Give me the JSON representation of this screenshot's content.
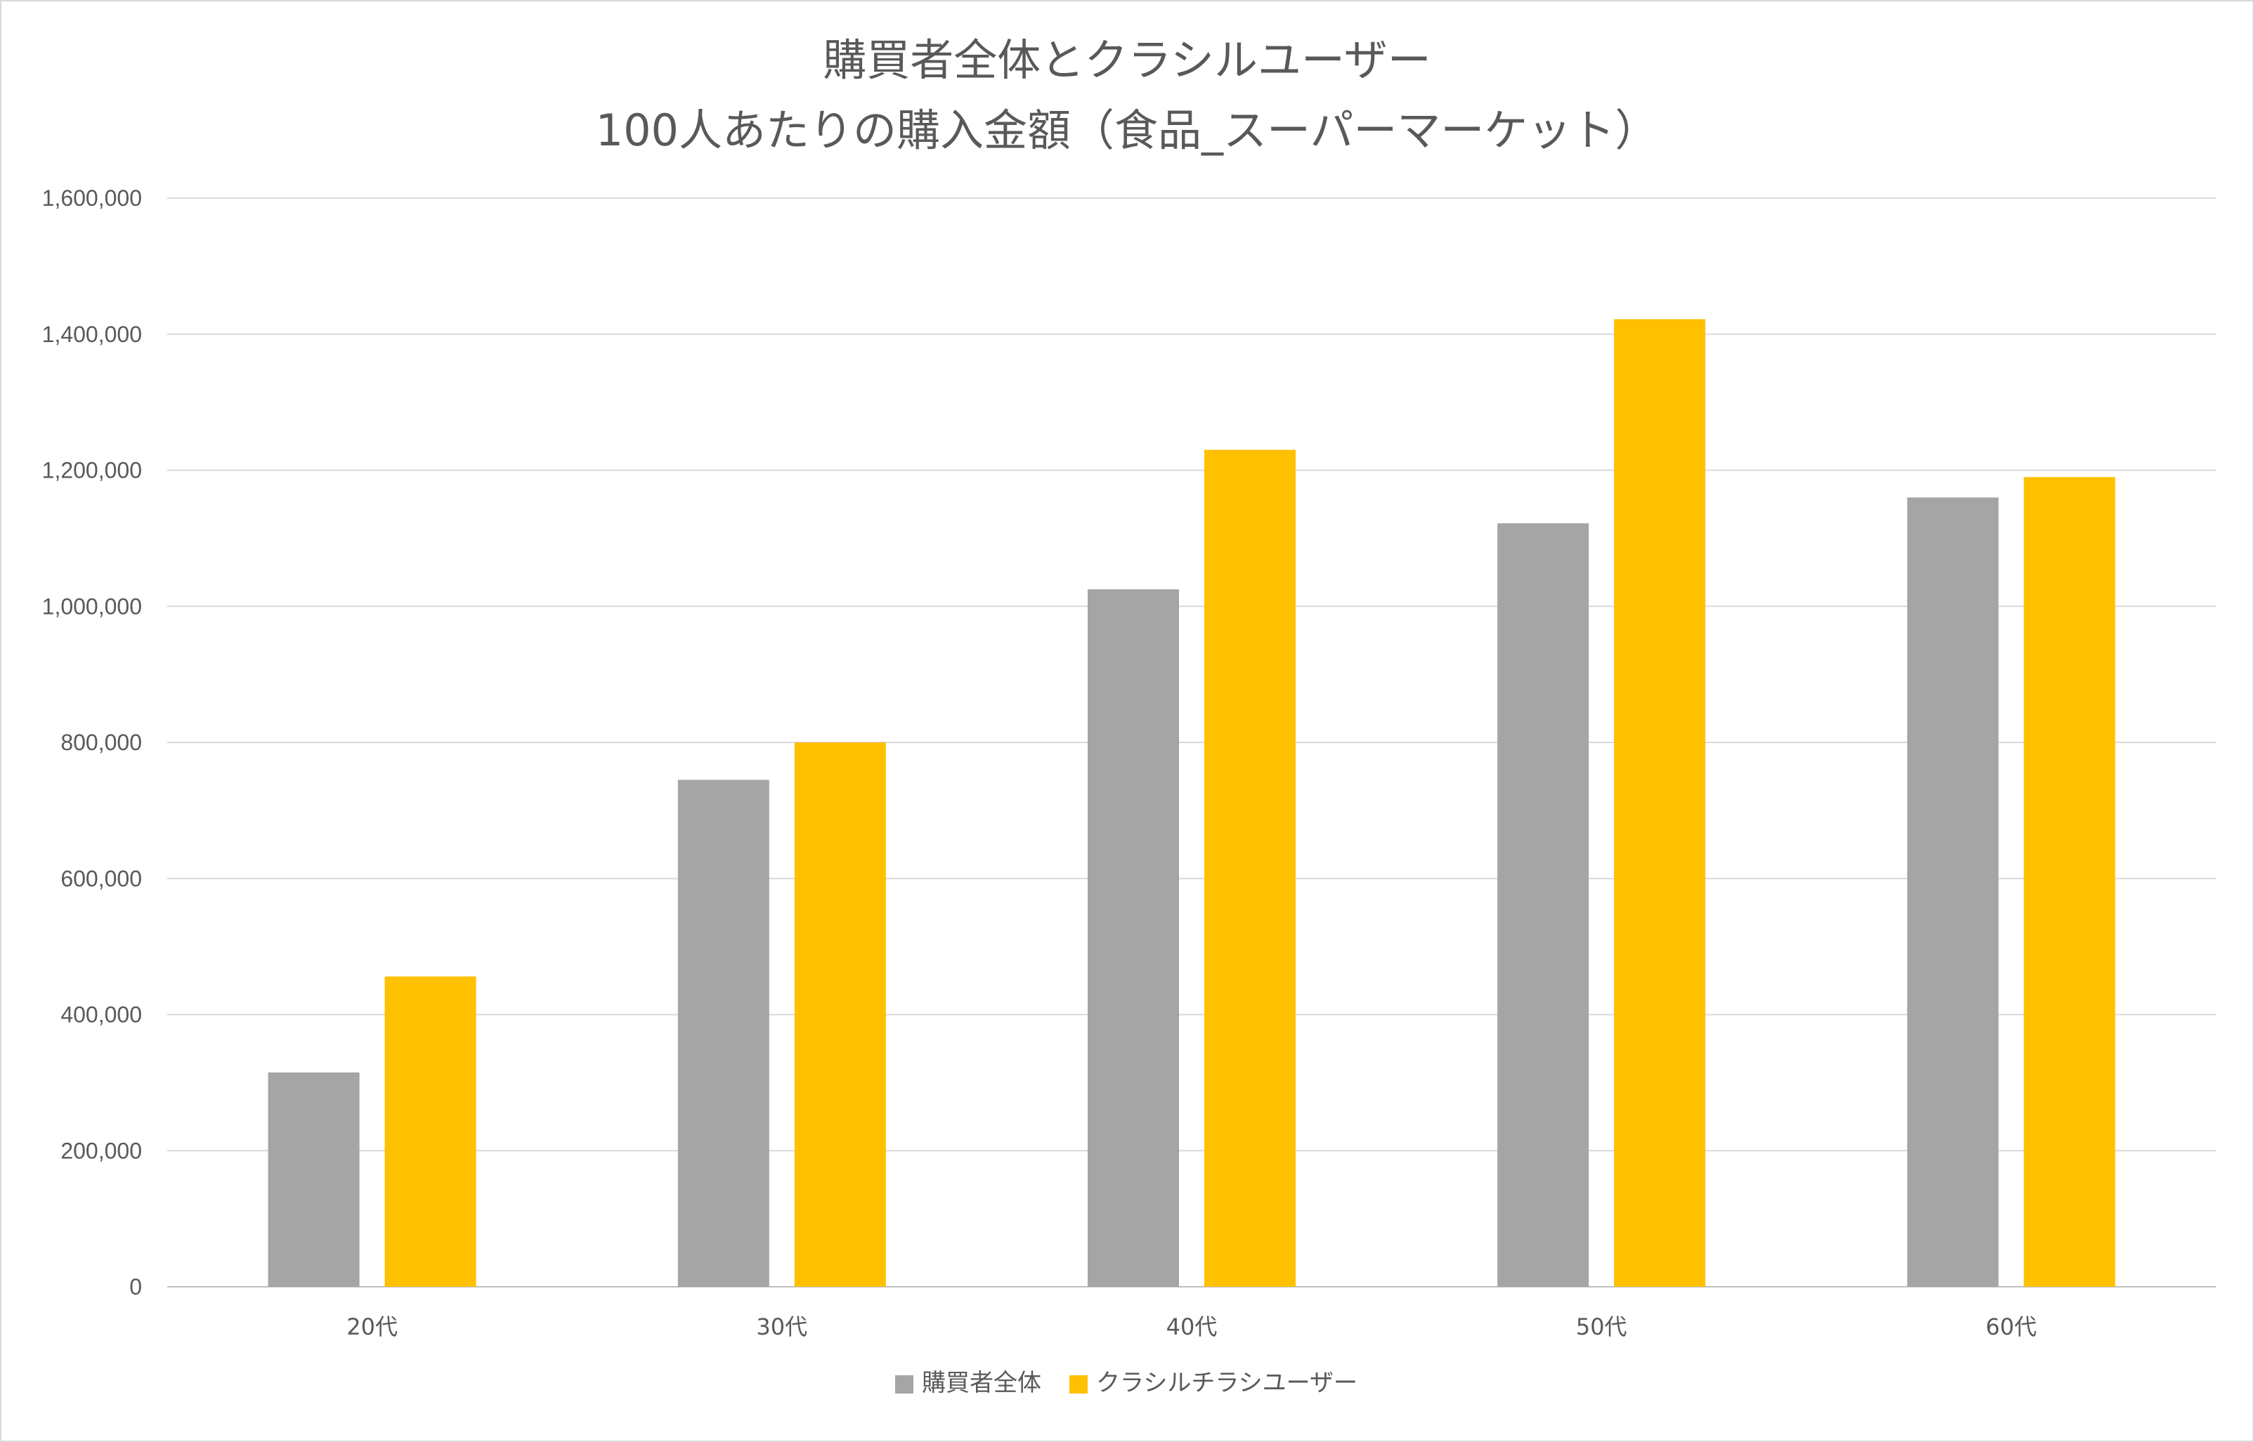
{
  "chart_data": {
    "type": "bar",
    "title_lines": [
      "購買者全体とクラシルユーザー",
      "100人あたりの購入金額（食品_スーパーマーケット）"
    ],
    "categories": [
      "20代",
      "30代",
      "40代",
      "50代",
      "60代"
    ],
    "series": [
      {
        "name": "購買者全体",
        "color": "#a5a5a5",
        "values": [
          315000,
          745000,
          1025000,
          1122000,
          1160000
        ]
      },
      {
        "name": "クラシルチラシユーザー",
        "color": "#ffc000",
        "values": [
          456000,
          800000,
          1230000,
          1422000,
          1190000
        ]
      }
    ],
    "y_ticks": [
      "0",
      "200,000",
      "400,000",
      "600,000",
      "800,000",
      "1,000,000",
      "1,200,000",
      "1,400,000",
      "1,600,000"
    ],
    "ylim": [
      0,
      1600000
    ],
    "grid": true,
    "legend_position": "bottom",
    "xlabel": "",
    "ylabel": ""
  }
}
